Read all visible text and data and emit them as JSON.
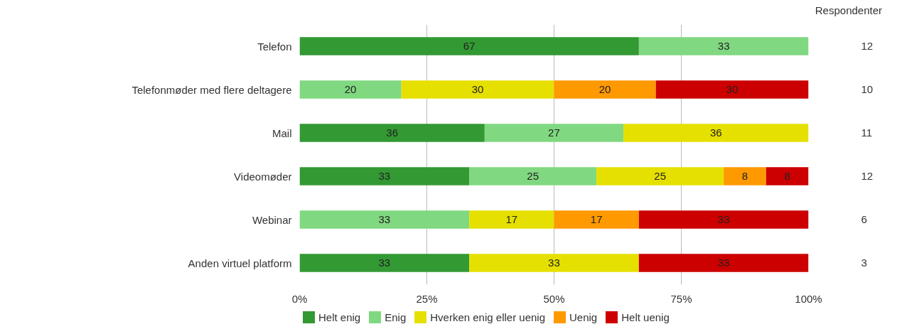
{
  "chart_data": {
    "type": "bar",
    "orientation": "horizontal",
    "stacked": true,
    "categories": [
      "Telefon",
      "Telefonmøder med flere deltagere",
      "Mail",
      "Videomøder",
      "Webinar",
      "Anden virtuel platform"
    ],
    "series": [
      {
        "name": "Helt enig",
        "color": "#339933",
        "values": [
          66.67,
          null,
          36.36,
          33.33,
          null,
          33.33
        ],
        "value_labels": [
          "67",
          null,
          "36",
          "33",
          null,
          "33"
        ]
      },
      {
        "name": "Enig",
        "color": "#80d880",
        "values": [
          33.33,
          20,
          27.27,
          25,
          33.33,
          null
        ],
        "value_labels": [
          "33",
          "20",
          "27",
          "25",
          "33",
          null
        ]
      },
      {
        "name": "Hverken enig eller uenig",
        "color": "#e6e000",
        "values": [
          null,
          30,
          36.36,
          25,
          16.67,
          33.33
        ],
        "value_labels": [
          null,
          "30",
          "36",
          "25",
          "17",
          "33"
        ]
      },
      {
        "name": "Uenig",
        "color": "#ff9900",
        "values": [
          null,
          20,
          null,
          8.33,
          16.67,
          null
        ],
        "value_labels": [
          null,
          "20",
          null,
          "8",
          "17",
          null
        ]
      },
      {
        "name": "Helt uenig",
        "color": "#cc0000",
        "values": [
          null,
          30,
          null,
          8.33,
          33.33,
          33.33
        ],
        "value_labels": [
          null,
          "30",
          null,
          "8",
          "33",
          "33"
        ]
      }
    ],
    "xlim": [
      0,
      100
    ],
    "xticks": [
      {
        "value": 0,
        "label": "0%"
      },
      {
        "value": 25,
        "label": "25%"
      },
      {
        "value": 50,
        "label": "50%"
      },
      {
        "value": 75,
        "label": "75%"
      },
      {
        "value": 100,
        "label": "100%"
      }
    ],
    "grid": "x",
    "legend": "bottom",
    "annotations": [
      "Respondenter",
      "12",
      "10",
      "11",
      "12",
      "6",
      "3"
    ]
  }
}
